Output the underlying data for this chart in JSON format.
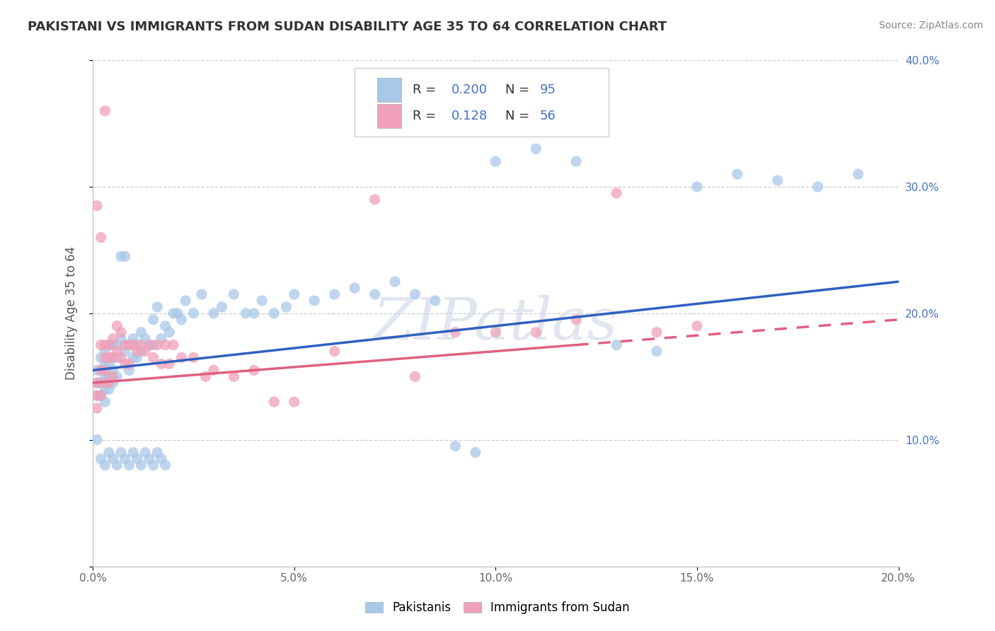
{
  "title": "PAKISTANI VS IMMIGRANTS FROM SUDAN DISABILITY AGE 35 TO 64 CORRELATION CHART",
  "source": "Source: ZipAtlas.com",
  "ylabel": "Disability Age 35 to 64",
  "xlim": [
    0.0,
    0.2
  ],
  "ylim": [
    0.0,
    0.4
  ],
  "xticks": [
    0.0,
    0.05,
    0.1,
    0.15,
    0.2
  ],
  "yticks": [
    0.0,
    0.1,
    0.2,
    0.3,
    0.4
  ],
  "xtick_labels": [
    "0.0%",
    "5.0%",
    "10.0%",
    "15.0%",
    "20.0%"
  ],
  "ytick_labels": [
    "",
    "10.0%",
    "20.0%",
    "30.0%",
    "40.0%"
  ],
  "right_ytick_labels": [
    "",
    "10.0%",
    "20.0%",
    "30.0%",
    "40.0%"
  ],
  "blue_color": "#a8c8e8",
  "pink_color": "#f0a0b8",
  "blue_line_color": "#3060c0",
  "pink_line_color": "#e06080",
  "R_blue": 0.2,
  "N_blue": 95,
  "R_pink": 0.128,
  "N_pink": 56,
  "legend_label_blue": "Pakistanis",
  "legend_label_pink": "Immigrants from Sudan",
  "watermark": "ZIPatlas",
  "blue_scatter_x": [
    0.001,
    0.001,
    0.001,
    0.002,
    0.002,
    0.002,
    0.002,
    0.003,
    0.003,
    0.003,
    0.003,
    0.003,
    0.004,
    0.004,
    0.004,
    0.004,
    0.005,
    0.005,
    0.005,
    0.005,
    0.006,
    0.006,
    0.006,
    0.007,
    0.007,
    0.008,
    0.008,
    0.009,
    0.009,
    0.01,
    0.01,
    0.011,
    0.011,
    0.012,
    0.012,
    0.013,
    0.014,
    0.015,
    0.015,
    0.016,
    0.017,
    0.018,
    0.019,
    0.02,
    0.021,
    0.022,
    0.023,
    0.025,
    0.027,
    0.03,
    0.032,
    0.035,
    0.038,
    0.04,
    0.042,
    0.045,
    0.048,
    0.05,
    0.055,
    0.06,
    0.065,
    0.07,
    0.075,
    0.08,
    0.085,
    0.09,
    0.095,
    0.1,
    0.11,
    0.12,
    0.13,
    0.14,
    0.15,
    0.16,
    0.17,
    0.18,
    0.19,
    0.001,
    0.002,
    0.003,
    0.004,
    0.005,
    0.006,
    0.007,
    0.008,
    0.009,
    0.01,
    0.011,
    0.012,
    0.013,
    0.014,
    0.015,
    0.016,
    0.017,
    0.018
  ],
  "blue_scatter_y": [
    0.155,
    0.145,
    0.135,
    0.165,
    0.155,
    0.145,
    0.135,
    0.17,
    0.16,
    0.15,
    0.14,
    0.13,
    0.175,
    0.16,
    0.15,
    0.14,
    0.175,
    0.165,
    0.155,
    0.145,
    0.175,
    0.165,
    0.15,
    0.245,
    0.18,
    0.245,
    0.17,
    0.175,
    0.155,
    0.18,
    0.165,
    0.175,
    0.165,
    0.185,
    0.17,
    0.18,
    0.175,
    0.195,
    0.175,
    0.205,
    0.18,
    0.19,
    0.185,
    0.2,
    0.2,
    0.195,
    0.21,
    0.2,
    0.215,
    0.2,
    0.205,
    0.215,
    0.2,
    0.2,
    0.21,
    0.2,
    0.205,
    0.215,
    0.21,
    0.215,
    0.22,
    0.215,
    0.225,
    0.215,
    0.21,
    0.095,
    0.09,
    0.32,
    0.33,
    0.32,
    0.175,
    0.17,
    0.3,
    0.31,
    0.305,
    0.3,
    0.31,
    0.1,
    0.085,
    0.08,
    0.09,
    0.085,
    0.08,
    0.09,
    0.085,
    0.08,
    0.09,
    0.085,
    0.08,
    0.09,
    0.085,
    0.08,
    0.09,
    0.085,
    0.08
  ],
  "pink_scatter_x": [
    0.001,
    0.001,
    0.001,
    0.002,
    0.002,
    0.002,
    0.003,
    0.003,
    0.003,
    0.003,
    0.004,
    0.004,
    0.004,
    0.005,
    0.005,
    0.005,
    0.006,
    0.006,
    0.007,
    0.007,
    0.008,
    0.008,
    0.009,
    0.009,
    0.01,
    0.011,
    0.012,
    0.013,
    0.014,
    0.015,
    0.016,
    0.017,
    0.018,
    0.019,
    0.02,
    0.022,
    0.025,
    0.028,
    0.03,
    0.035,
    0.04,
    0.045,
    0.05,
    0.06,
    0.07,
    0.08,
    0.09,
    0.1,
    0.11,
    0.12,
    0.13,
    0.14,
    0.15,
    0.001,
    0.002,
    0.003
  ],
  "pink_scatter_y": [
    0.145,
    0.135,
    0.125,
    0.175,
    0.155,
    0.135,
    0.175,
    0.165,
    0.155,
    0.145,
    0.175,
    0.165,
    0.145,
    0.18,
    0.165,
    0.15,
    0.19,
    0.17,
    0.185,
    0.165,
    0.175,
    0.16,
    0.175,
    0.16,
    0.175,
    0.17,
    0.175,
    0.17,
    0.175,
    0.165,
    0.175,
    0.16,
    0.175,
    0.16,
    0.175,
    0.165,
    0.165,
    0.15,
    0.155,
    0.15,
    0.155,
    0.13,
    0.13,
    0.17,
    0.29,
    0.15,
    0.185,
    0.185,
    0.185,
    0.195,
    0.295,
    0.185,
    0.19,
    0.285,
    0.26,
    0.36
  ]
}
